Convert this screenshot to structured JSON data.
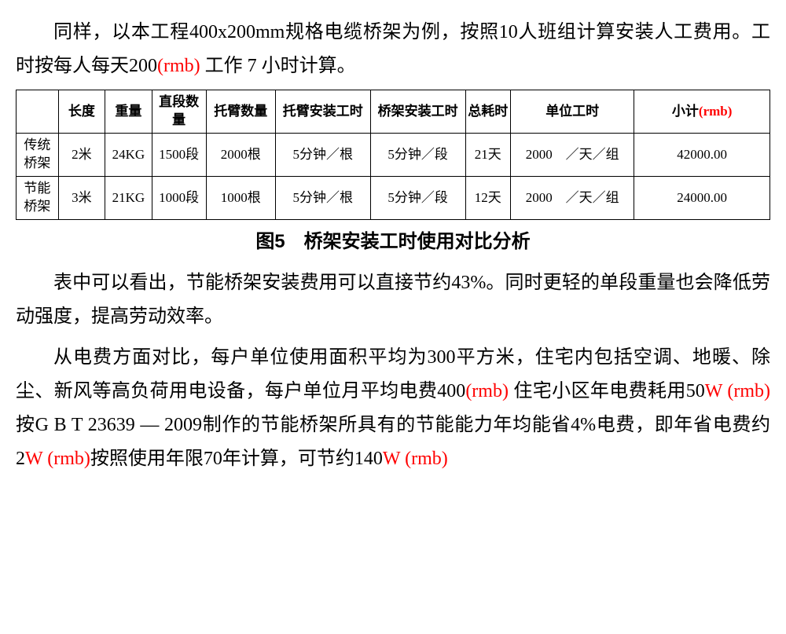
{
  "para1": {
    "part1": "同样，以本工程400x200mm规格电缆桥架为例，按照10人班组计算安装人工费用。工时按每人每天200",
    "rmb1": "(rmb) ",
    "part2": "工作 7 小时计算。"
  },
  "table": {
    "headers": {
      "blank": "",
      "length": "长度",
      "weight": "重量",
      "segments": "直段数量",
      "arms": "托臂数量",
      "arm_time": "托臂安装工时",
      "bridge_time": "桥架安装工时",
      "total_time": "总耗时",
      "unit_time": "单位工时",
      "subtotal_label": "小计",
      "subtotal_rmb": "(rmb)"
    },
    "rows": [
      {
        "name": "传统桥架",
        "length": "2米",
        "weight": "24KG",
        "segments": "1500段",
        "arms": "2000根",
        "arm_time": "5分钟／根",
        "bridge_time": "5分钟／段",
        "total_time": "21天",
        "unit_time": "2000　／天／组",
        "subtotal": "42000.00"
      },
      {
        "name": "节能桥架",
        "length": "3米",
        "weight": "21KG",
        "segments": "1000段",
        "arms": "1000根",
        "arm_time": "5分钟／根",
        "bridge_time": "5分钟／段",
        "total_time": "12天",
        "unit_time": "2000　／天／组",
        "subtotal": "24000.00"
      }
    ]
  },
  "caption": "图5　桥架安装工时使用对比分析",
  "para2": "表中可以看出，节能桥架安装费用可以直接节约43%。同时更轻的单段重量也会降低劳动强度，提高劳动效率。",
  "para3": {
    "part1": "从电费方面对比，每户单位使用面积平均为300平方米，住宅内包括空调、地暖、除尘、新风等高负荷用电设备，每户单位月平均电费400",
    "rmb1": "(rmb) ",
    "part2": "住宅小区年电费耗用50",
    "rmb2": "W (rmb)",
    "part3": "按G B T 23639 — 2009制作的节能桥架所具有的节能能力年均能省4%电费，即年省电费约2",
    "rmb3": "W (rmb)",
    "part4": "按照使用年限70年计算，可节约140",
    "rmb4": "W (rmb)"
  }
}
